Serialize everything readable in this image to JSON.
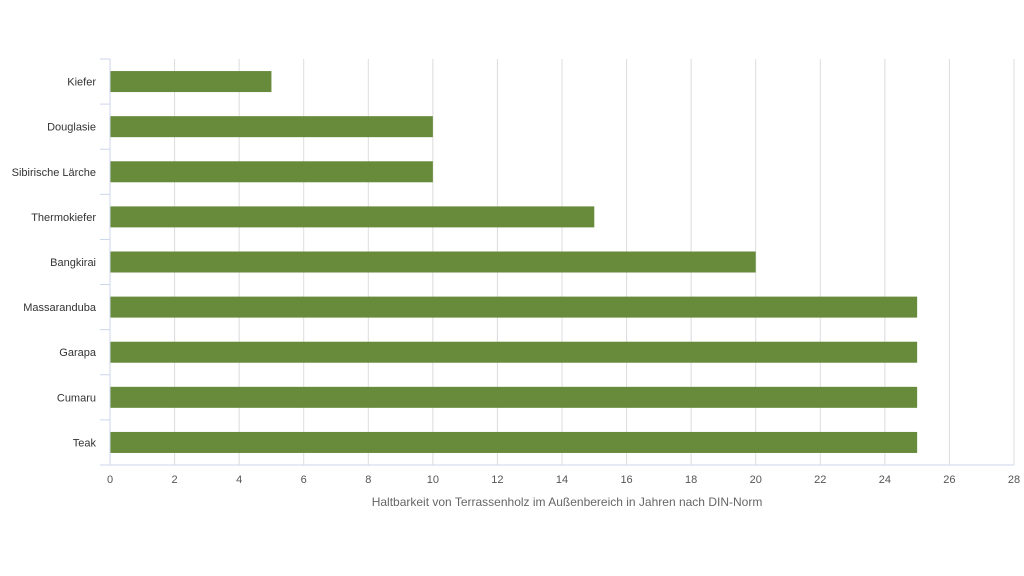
{
  "chart_data": {
    "type": "bar",
    "orientation": "horizontal",
    "categories": [
      "Kiefer",
      "Douglasie",
      "Sibirische Lärche",
      "Thermokiefer",
      "Bangkirai",
      "Massaranduba",
      "Garapa",
      "Cumaru",
      "Teak"
    ],
    "values": [
      5,
      10,
      10,
      15,
      20,
      25,
      25,
      25,
      25
    ],
    "xlabel": "Haltbarkeit von Terrassenholz im Außenbereich in Jahren nach DIN-Norm",
    "ylabel": "",
    "xlim": [
      0,
      28
    ],
    "xticks": [
      0,
      2,
      4,
      6,
      8,
      10,
      12,
      14,
      16,
      18,
      20,
      22,
      24,
      26,
      28
    ],
    "grid": "vertical",
    "legend": "none",
    "bar_color": "#678a3b"
  }
}
